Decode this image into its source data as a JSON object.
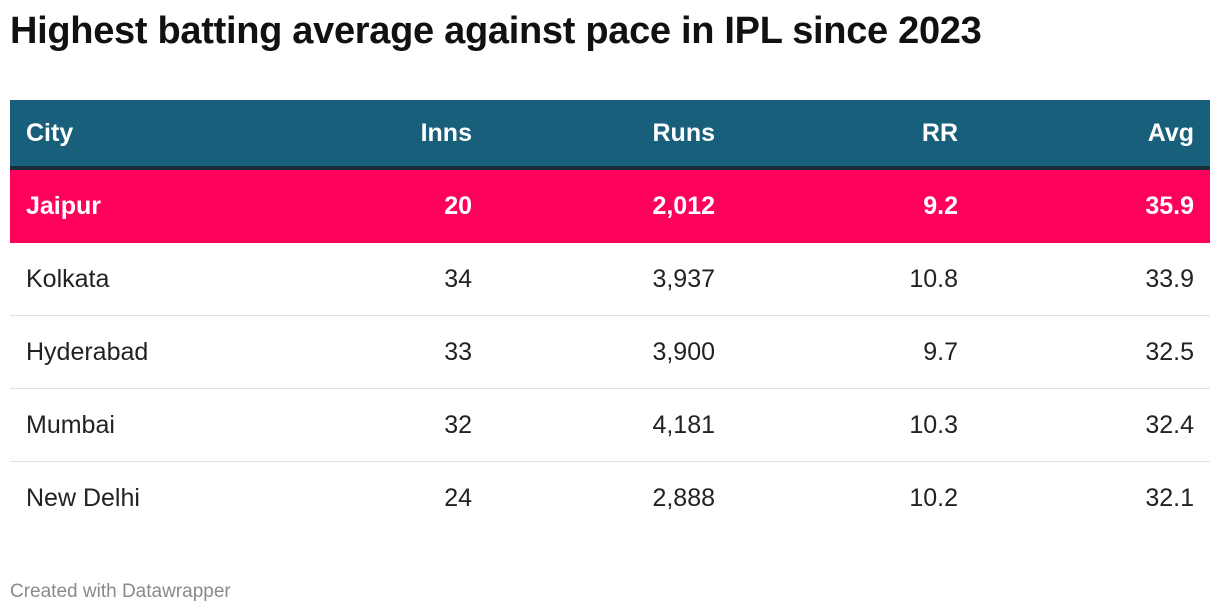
{
  "title": "Highest batting average against pace in IPL since 2023",
  "footer": "Created with Datawrapper",
  "colors": {
    "header_bg": "#175f7a",
    "highlight_bg": "#ff005a",
    "header_text": "#ffffff",
    "body_text": "#222222",
    "footer_text": "#8a8a8a"
  },
  "chart_data": {
    "type": "table",
    "columns": [
      "City",
      "Inns",
      "Runs",
      "RR",
      "Avg"
    ],
    "rows": [
      [
        "Jaipur",
        "20",
        "2,012",
        "9.2",
        "35.9"
      ],
      [
        "Kolkata",
        "34",
        "3,937",
        "10.8",
        "33.9"
      ],
      [
        "Hyderabad",
        "33",
        "3,900",
        "9.7",
        "32.5"
      ],
      [
        "Mumbai",
        "32",
        "4,181",
        "10.3",
        "32.4"
      ],
      [
        "New Delhi",
        "24",
        "2,888",
        "10.2",
        "32.1"
      ]
    ],
    "highlighted_row": "Jaipur"
  }
}
